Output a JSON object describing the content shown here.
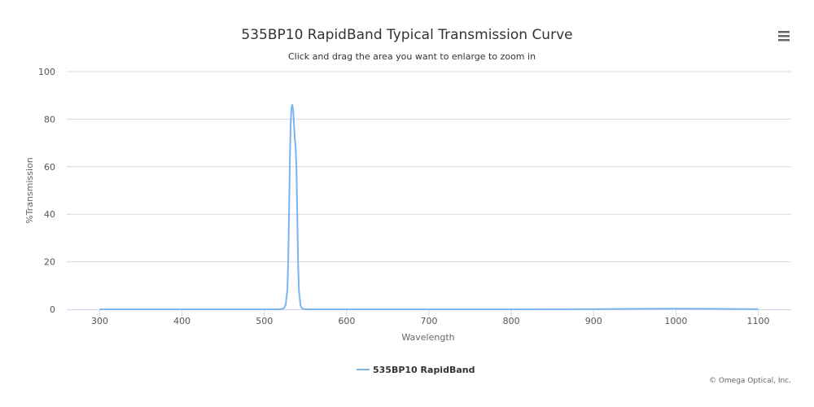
{
  "chart_data": {
    "type": "line",
    "title": "535BP10 RapidBand Typical Transmission Curve",
    "subtitle": "Click and drag the area you want to enlarge to zoom in",
    "xlabel": "Wavelength",
    "ylabel": "%Transmission",
    "xlim": [
      260,
      1140
    ],
    "ylim": [
      0,
      100
    ],
    "x_ticks": [
      300,
      400,
      500,
      600,
      700,
      800,
      900,
      1000,
      1100
    ],
    "y_ticks": [
      0,
      20,
      40,
      60,
      80,
      100
    ],
    "grid": true,
    "legend_position": "bottom-center",
    "series": [
      {
        "name": "535BP10 RapidBand",
        "color": "#7cb5ec",
        "x": [
          300,
          400,
          500,
          520,
          524,
          526,
          528,
          529,
          530,
          531,
          532,
          533,
          534,
          535,
          536,
          537,
          538,
          539,
          540,
          541,
          542,
          544,
          546,
          550,
          600,
          700,
          800,
          900,
          950,
          1000,
          1050,
          1100
        ],
        "y": [
          0,
          0,
          0,
          0,
          0.5,
          2,
          8,
          20,
          40,
          62,
          78,
          85,
          86,
          84,
          78,
          72,
          68,
          60,
          40,
          20,
          8,
          1.5,
          0.3,
          0,
          0,
          0,
          0,
          0.1,
          0.2,
          0.3,
          0.2,
          0.1
        ]
      }
    ]
  },
  "credits": "© Omega Optical, Inc.",
  "menu": {
    "icon": "hamburger-menu-icon"
  }
}
